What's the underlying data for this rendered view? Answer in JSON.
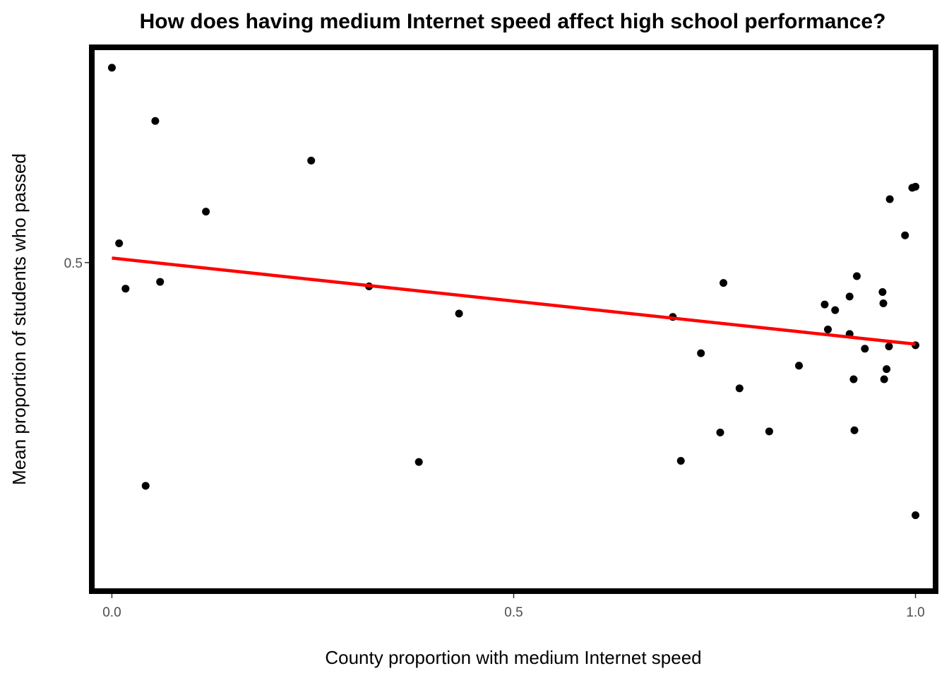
{
  "chart_data": {
    "type": "scatter",
    "title": "How does having medium Internet speed affect high school performance?",
    "xlabel": "County proportion with medium Internet speed",
    "ylabel": "Mean proportion of students who passed",
    "xlim": [
      -0.025,
      1.025
    ],
    "ylim": [
      0.21,
      0.69
    ],
    "x_ticks": [
      0.0,
      0.5,
      1.0
    ],
    "x_tick_labels": [
      "0.0",
      "0.5",
      "1.0"
    ],
    "y_ticks": [
      0.5
    ],
    "y_tick_labels": [
      "0.5"
    ],
    "grid": false,
    "legend": "none",
    "point_color": "#000000",
    "trend_line_color": "#ff0000",
    "points": [
      {
        "x": 0.0,
        "y": 0.672
      },
      {
        "x": 0.054,
        "y": 0.625
      },
      {
        "x": 0.248,
        "y": 0.59
      },
      {
        "x": 0.117,
        "y": 0.545
      },
      {
        "x": 0.009,
        "y": 0.517
      },
      {
        "x": 0.017,
        "y": 0.477
      },
      {
        "x": 0.06,
        "y": 0.483
      },
      {
        "x": 0.042,
        "y": 0.303
      },
      {
        "x": 0.32,
        "y": 0.479
      },
      {
        "x": 0.432,
        "y": 0.455
      },
      {
        "x": 0.382,
        "y": 0.324
      },
      {
        "x": 0.698,
        "y": 0.452
      },
      {
        "x": 0.708,
        "y": 0.325
      },
      {
        "x": 0.733,
        "y": 0.42
      },
      {
        "x": 0.761,
        "y": 0.482
      },
      {
        "x": 0.757,
        "y": 0.35
      },
      {
        "x": 0.781,
        "y": 0.389
      },
      {
        "x": 0.818,
        "y": 0.351
      },
      {
        "x": 0.855,
        "y": 0.409
      },
      {
        "x": 0.887,
        "y": 0.463
      },
      {
        "x": 0.891,
        "y": 0.441
      },
      {
        "x": 0.9,
        "y": 0.458
      },
      {
        "x": 0.918,
        "y": 0.47
      },
      {
        "x": 0.918,
        "y": 0.437
      },
      {
        "x": 0.923,
        "y": 0.397
      },
      {
        "x": 0.924,
        "y": 0.352
      },
      {
        "x": 0.927,
        "y": 0.488
      },
      {
        "x": 0.937,
        "y": 0.424
      },
      {
        "x": 0.959,
        "y": 0.474
      },
      {
        "x": 0.96,
        "y": 0.464
      },
      {
        "x": 0.961,
        "y": 0.397
      },
      {
        "x": 0.964,
        "y": 0.406
      },
      {
        "x": 0.967,
        "y": 0.426
      },
      {
        "x": 0.968,
        "y": 0.556
      },
      {
        "x": 0.987,
        "y": 0.524
      },
      {
        "x": 0.996,
        "y": 0.566
      },
      {
        "x": 1.0,
        "y": 0.567
      },
      {
        "x": 1.0,
        "y": 0.427
      },
      {
        "x": 1.0,
        "y": 0.277
      }
    ],
    "trend_line": {
      "x": [
        0.0,
        1.0
      ],
      "y": [
        0.504,
        0.428
      ]
    }
  }
}
